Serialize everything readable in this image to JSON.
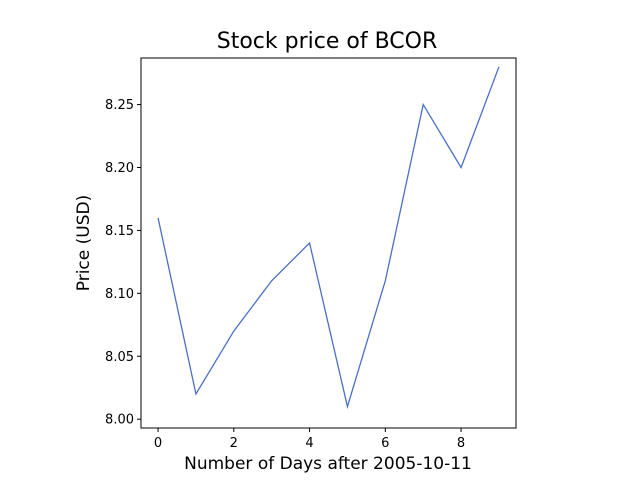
{
  "chart_data": {
    "type": "line",
    "title": "Stock price of BCOR",
    "xlabel": "Number of Days after 2005-10-11",
    "ylabel": "Price (USD)",
    "x": [
      0,
      1,
      2,
      3,
      4,
      5,
      6,
      7,
      8,
      9
    ],
    "series": [
      {
        "values": [
          8.16,
          8.02,
          8.07,
          8.11,
          8.14,
          8.01,
          8.11,
          8.25,
          8.2,
          8.28
        ],
        "color": "#4a6fc7"
      }
    ],
    "xlim": [
      -0.45,
      9.45
    ],
    "ylim": [
      7.993,
      8.287
    ],
    "x_ticks": [
      0,
      2,
      4,
      6,
      8
    ],
    "x_tick_labels": [
      "0",
      "2",
      "4",
      "6",
      "8"
    ],
    "y_ticks": [
      8.0,
      8.05,
      8.1,
      8.15,
      8.2,
      8.25
    ],
    "y_tick_labels": [
      "8.00",
      "8.05",
      "8.10",
      "8.15",
      "8.20",
      "8.25"
    ],
    "grid": false,
    "legend": "none"
  }
}
